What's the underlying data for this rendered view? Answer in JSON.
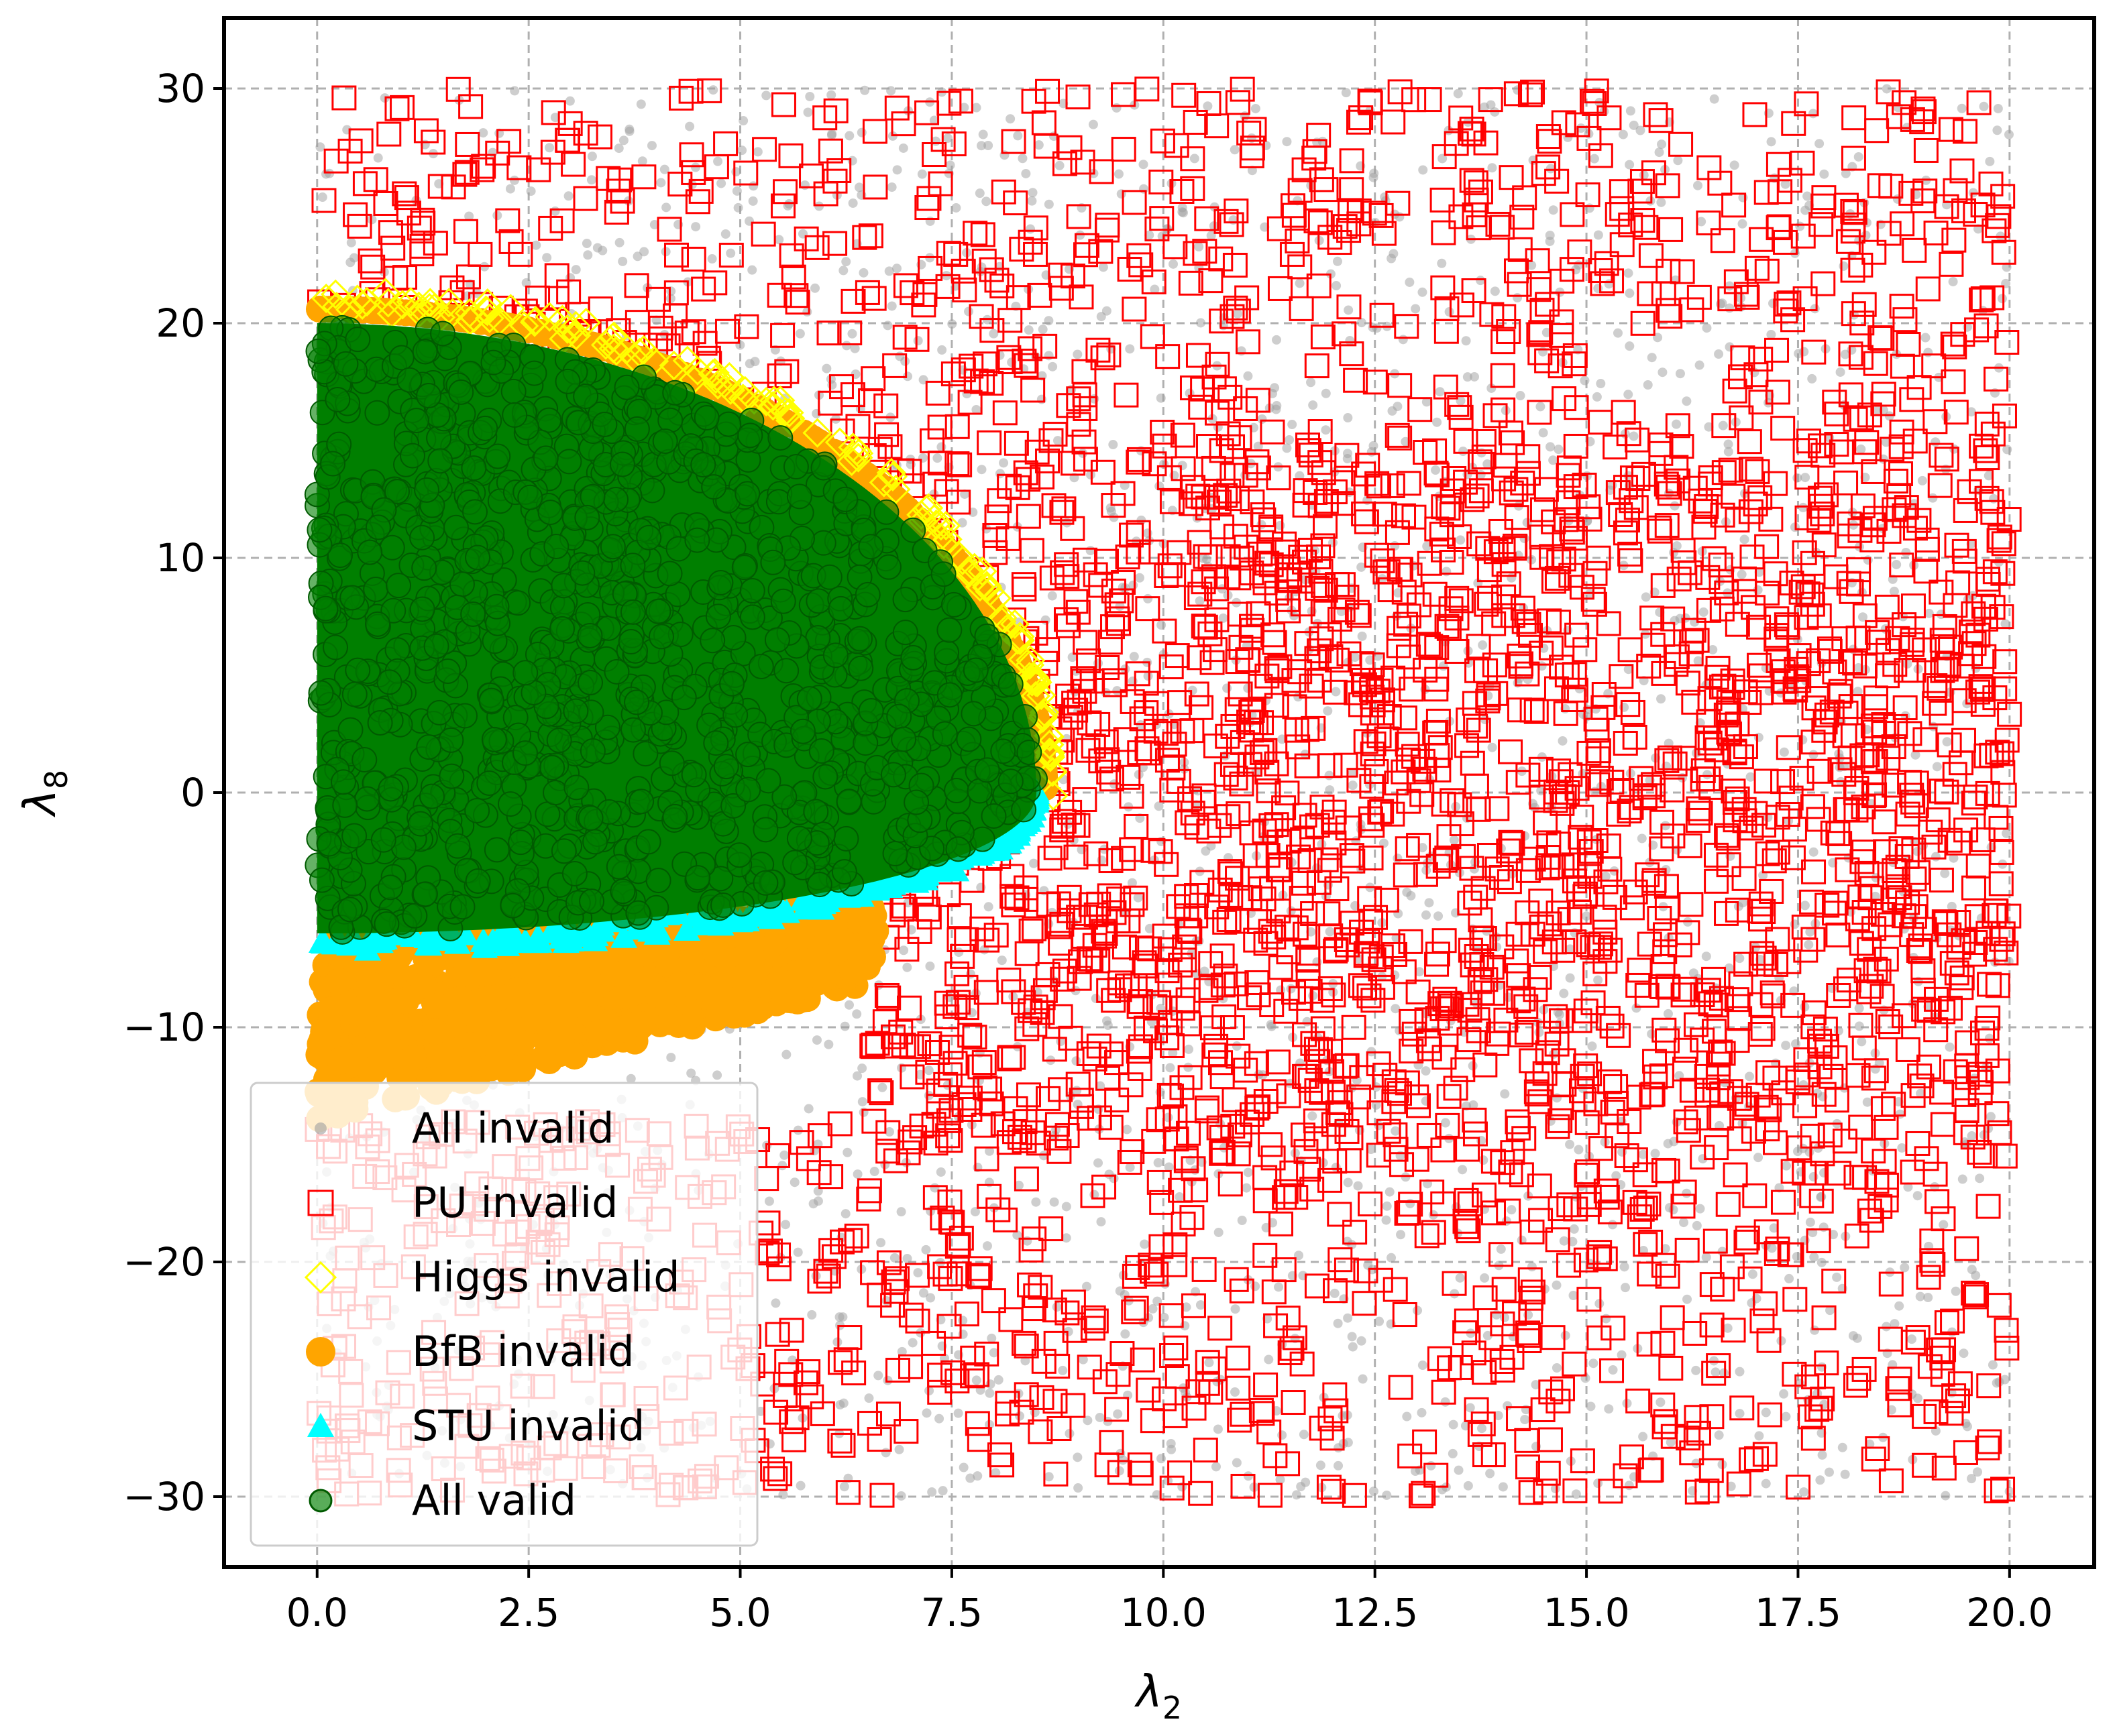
{
  "chart_data": {
    "type": "scatter",
    "xlabel": "λ",
    "xlabel_sub": "2",
    "ylabel": "λ",
    "ylabel_sub": "8",
    "xlim": [
      -1.1,
      21.0
    ],
    "ylim": [
      -33.0,
      33.0
    ],
    "xticks": [
      0.0,
      2.5,
      5.0,
      7.5,
      10.0,
      12.5,
      15.0,
      17.5,
      20.0
    ],
    "xtick_labels": [
      "0.0",
      "2.5",
      "5.0",
      "7.5",
      "10.0",
      "12.5",
      "15.0",
      "17.5",
      "20.0"
    ],
    "yticks": [
      -30,
      -20,
      -10,
      0,
      10,
      20,
      30
    ],
    "ytick_labels": [
      "−30",
      "−20",
      "−10",
      "0",
      "10",
      "20",
      "30"
    ],
    "grid": true,
    "legend_position": "lower-left",
    "sample_domain": {
      "x": [
        0.0,
        20.0
      ],
      "y": [
        -30.0,
        30.0
      ]
    },
    "regions": {
      "valid_boundary_note": "valid points lie inside an approx. half-ellipse: x in [0, 8.5], y from about -6 (bottom) to about +20 (top); BfB-invalid points extend below down to about -14 for x < 6"
    },
    "series": [
      {
        "name": "All invalid",
        "marker": "small-circle",
        "color": "#9e9e9e",
        "region": "full sampling range, mostly background"
      },
      {
        "name": "PU invalid",
        "marker": "open-square",
        "color": "#ff0000",
        "region": "everywhere outside the valid half-ellipse"
      },
      {
        "name": "Higgs invalid",
        "marker": "open-diamond",
        "color": "#ffff00",
        "region": "thin rim at the edge of the valid half-ellipse"
      },
      {
        "name": "BfB invalid",
        "marker": "filled-circle",
        "color": "#ffa500",
        "region": "below the valid half-ellipse, x in [0, 7], y in [-14, 0]"
      },
      {
        "name": "STU invalid",
        "marker": "filled-triangle",
        "color": "#00ffff",
        "region": "thin rim around the lower edge of the valid half-ellipse"
      },
      {
        "name": "All valid",
        "marker": "filled-circle",
        "color": "#007f00",
        "region": "half-ellipse x in [0, 8.5], y in [-6, 20]"
      }
    ]
  }
}
